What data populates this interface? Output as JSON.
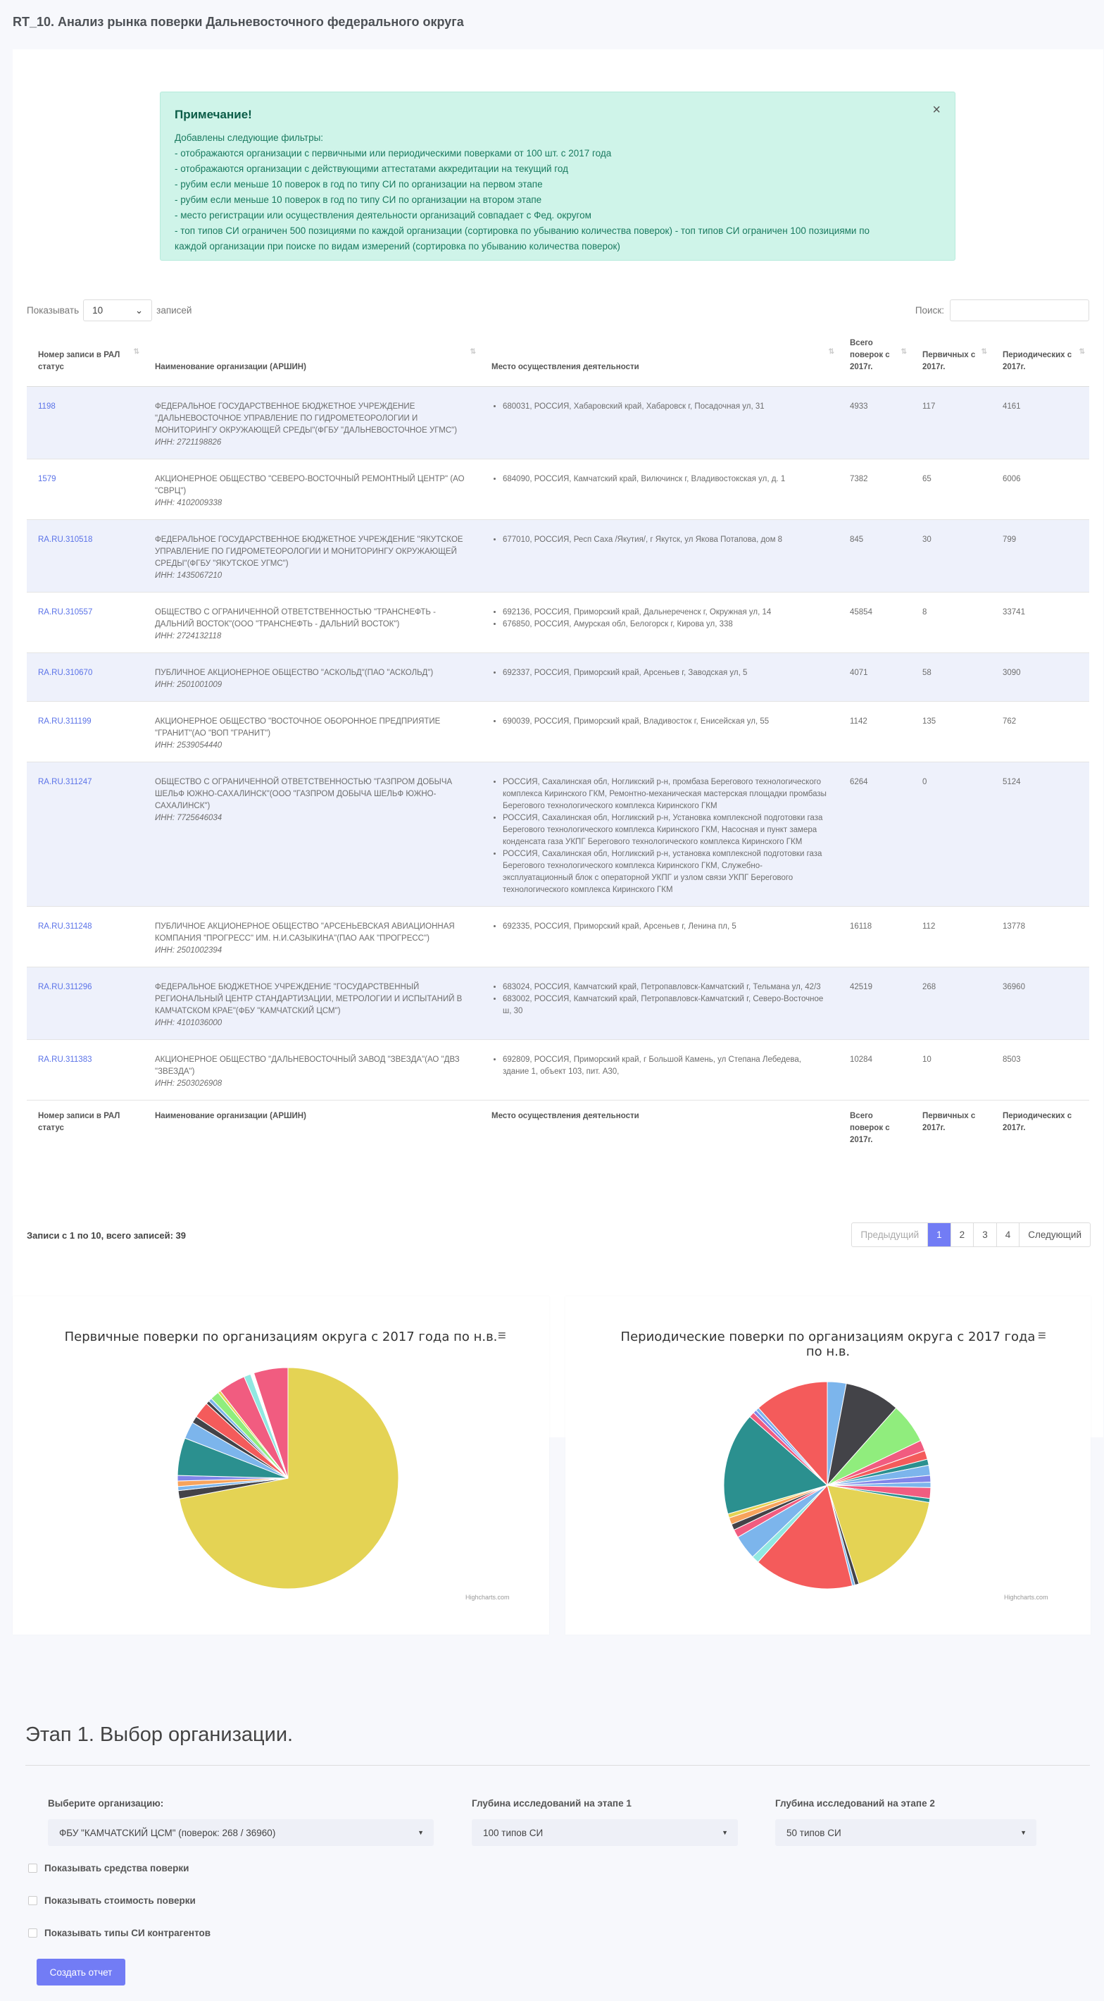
{
  "page": {
    "title": "RT_10. Анализ рынка поверки Дальневосточного федерального округа"
  },
  "note": {
    "title": "Примечание!",
    "lines": [
      "Добавлены следующие фильтры:",
      "- отображаются организации с первичными или периодическими поверками от 100 шт. с 2017 года",
      "- отображаются организации с действующими аттестатами аккредитации на текущий год",
      "- рубим если меньше 10 поверок в год по типу СИ по организации на первом этапе",
      "- рубим если меньше 10 поверок в год по типу СИ по организации на втором этапе",
      "- место регистрации или осуществления деятельности организаций совпадает с Фед. округом",
      "- топ типов СИ ограничен 500 позициями по каждой организации (сортировка по убыванию количества поверок) - топ типов СИ ограничен 100 позициями по",
      "каждой организации при поиске по видам измерений (сортировка по убыванию количества поверок)"
    ],
    "close": "×"
  },
  "table_controls": {
    "show_label": "Показывать",
    "length_value": "10",
    "records_label": "записей",
    "search_label": "Поиск:"
  },
  "columns": [
    "Номер записи в РАЛ статус",
    "Наименование организации (АРШИН)",
    "Место осуществления деятельности",
    "Всего поверок с 2017г.",
    "Первичных с 2017г.",
    "Периодических с 2017г."
  ],
  "rows": [
    {
      "rec": "1198",
      "name": "ФЕДЕРАЛЬНОЕ ГОСУДАРСТВЕННОЕ БЮДЖЕТНОЕ УЧРЕЖДЕНИЕ \"ДАЛЬНЕВОСТОЧНОЕ УПРАВЛЕНИЕ ПО ГИДРОМЕТЕОРОЛОГИИ И МОНИТОРИНГУ ОКРУЖАЮЩЕЙ СРЕДЫ\"(ФГБУ \"ДАЛЬНЕВОСТОЧНОЕ УГМС\")",
      "inn": "ИНН: 2721198826",
      "places": [
        "680031, РОССИЯ, Хабаровский край, Хабаровск г, Посадочная ул, 31"
      ],
      "total": "4933",
      "primary": "117",
      "periodic": "4161"
    },
    {
      "rec": "1579",
      "name": "АКЦИОНЕРНОЕ ОБЩЕСТВО \"СЕВЕРО-ВОСТОЧНЫЙ РЕМОНТНЫЙ ЦЕНТР\" (АО \"СВРЦ\")",
      "inn": "ИНН: 4102009338",
      "places": [
        "684090, РОССИЯ, Камчатский край, Вилючинск г, Владивостокская ул, д. 1"
      ],
      "total": "7382",
      "primary": "65",
      "periodic": "6006"
    },
    {
      "rec": "RA.RU.310518",
      "name": "ФЕДЕРАЛЬНОЕ ГОСУДАРСТВЕННОЕ БЮДЖЕТНОЕ УЧРЕЖДЕНИЕ \"ЯКУТСКОЕ УПРАВЛЕНИЕ ПО ГИДРОМЕТЕОРОЛОГИИ И МОНИТОРИНГУ ОКРУЖАЮЩЕЙ СРЕДЫ\"(ФГБУ \"ЯКУТСКОЕ УГМС\")",
      "inn": "ИНН: 1435067210",
      "places": [
        "677010, РОССИЯ, Респ Саха /Якутия/, г Якутск, ул Якова Потапова, дом 8"
      ],
      "total": "845",
      "primary": "30",
      "periodic": "799"
    },
    {
      "rec": "RA.RU.310557",
      "name": "ОБЩЕСТВО С ОГРАНИЧЕННОЙ ОТВЕТСТВЕННОСТЬЮ \"ТРАНСНЕФТЬ - ДАЛЬНИЙ ВОСТОК\"(ООО \"ТРАНСНЕФТЬ - ДАЛЬНИЙ ВОСТОК\")",
      "inn": "ИНН: 2724132118",
      "places": [
        "692136, РОССИЯ, Приморский край, Дальнереченск г, Окружная ул, 14",
        "676850, РОССИЯ, Амурская обл, Белогорск г, Кирова ул, 338"
      ],
      "total": "45854",
      "primary": "8",
      "periodic": "33741"
    },
    {
      "rec": "RA.RU.310670",
      "name": "ПУБЛИЧНОЕ АКЦИОНЕРНОЕ ОБЩЕСТВО \"АСКОЛЬД\"(ПАО \"АСКОЛЬД\")",
      "inn": "ИНН: 2501001009",
      "places": [
        "692337, РОССИЯ, Приморский край, Арсеньев г, Заводская ул, 5"
      ],
      "total": "4071",
      "primary": "58",
      "periodic": "3090"
    },
    {
      "rec": "RA.RU.311199",
      "name": "АКЦИОНЕРНОЕ ОБЩЕСТВО \"ВОСТОЧНОЕ ОБОРОННОЕ ПРЕДПРИЯТИЕ \"ГРАНИТ\"(АО \"ВОП \"ГРАНИТ\")",
      "inn": "ИНН: 2539054440",
      "places": [
        "690039, РОССИЯ, Приморский край, Владивосток г, Енисейская ул, 55"
      ],
      "total": "1142",
      "primary": "135",
      "periodic": "762"
    },
    {
      "rec": "RA.RU.311247",
      "name": "ОБЩЕСТВО С ОГРАНИЧЕННОЙ ОТВЕТСТВЕННОСТЬЮ \"ГАЗПРОМ ДОБЫЧА ШЕЛЬФ ЮЖНО-САХАЛИНСК\"(ООО \"ГАЗПРОМ ДОБЫЧА ШЕЛЬФ ЮЖНО-САХАЛИНСК\")",
      "inn": "ИНН: 7725646034",
      "places": [
        "РОССИЯ, Сахалинская обл, Ногликский р-н, промбаза Берегового технологического комплекса Киринского ГКМ, Ремонтно-механическая мастерская площадки промбазы Берегового технологического комплекса Киринского ГКМ",
        "РОССИЯ, Сахалинская обл, Ногликский р-н, Установка комплексной подготовки газа Берегового технологического комплекса Киринского ГКМ, Насосная и пункт замера конденсата газа УКПГ Берегового технологического комплекса Киринского ГКМ",
        "РОССИЯ, Сахалинская обл, Ногликский р-н, установка комплексной подготовки газа Берегового технологического комплекса Киринского ГКМ, Служебно-эксплуатационный блок с операторной УКПГ и узлом связи УКПГ Берегового технологического комплекса Киринского ГКМ"
      ],
      "total": "6264",
      "primary": "0",
      "periodic": "5124"
    },
    {
      "rec": "RA.RU.311248",
      "name": "ПУБЛИЧНОЕ АКЦИОНЕРНОЕ ОБЩЕСТВО \"АРСЕНЬЕВСКАЯ АВИАЦИОННАЯ КОМПАНИЯ \"ПРОГРЕСС\" ИМ. Н.И.САЗЫКИНА\"(ПАО ААК \"ПРОГРЕСС\")",
      "inn": "ИНН: 2501002394",
      "places": [
        "692335, РОССИЯ, Приморский край, Арсеньев г, Ленина пл, 5"
      ],
      "total": "16118",
      "primary": "112",
      "periodic": "13778"
    },
    {
      "rec": "RA.RU.311296",
      "name": "ФЕДЕРАЛЬНОЕ БЮДЖЕТНОЕ УЧРЕЖДЕНИЕ \"ГОСУДАРСТВЕННЫЙ РЕГИОНАЛЬНЫЙ ЦЕНТР СТАНДАРТИЗАЦИИ, МЕТРОЛОГИИ И ИСПЫТАНИЙ В КАМЧАТСКОМ КРАЕ\"(ФБУ \"КАМЧАТСКИЙ ЦСМ\")",
      "inn": "ИНН: 4101036000",
      "places": [
        "683024, РОССИЯ, Камчатский край, Петропавловск-Камчатский г, Тельмана ул, 42/3",
        "683002, РОССИЯ, Камчатский край, Петропавловск-Камчатский г, Северо-Восточное ш, 30"
      ],
      "total": "42519",
      "primary": "268",
      "periodic": "36960"
    },
    {
      "rec": "RA.RU.311383",
      "name": "АКЦИОНЕРНОЕ ОБЩЕСТВО \"ДАЛЬНЕВОСТОЧНЫЙ ЗАВОД \"ЗВЕЗДА\"(АО \"ДВЗ \"ЗВЕЗДА\")",
      "inn": "ИНН: 2503026908",
      "places": [
        "692809, РОССИЯ, Приморский край, г Большой Камень, ул Степана Лебедева, здание 1, объект 103, пит. А30,"
      ],
      "total": "10284",
      "primary": "10",
      "periodic": "8503"
    }
  ],
  "table_info": "Записи с 1 по 10, всего записей: 39",
  "pagination": {
    "prev": "Предыдущий",
    "pages": [
      "1",
      "2",
      "3",
      "4"
    ],
    "next": "Следующий"
  },
  "chart_data": [
    {
      "type": "pie",
      "title": "Первичные поверки по организациям округа с 2017 года по н.в.",
      "credits": "Highcharts.com",
      "slices": [
        {
          "value": 72.0,
          "color": "#e4d354"
        },
        {
          "value": 1.2,
          "color": "#434348"
        },
        {
          "value": 0.6,
          "color": "#7cb5ec"
        },
        {
          "value": 0.8,
          "color": "#f7a35c"
        },
        {
          "value": 0.8,
          "color": "#8085e9"
        },
        {
          "value": 5.5,
          "color": "#2b908f"
        },
        {
          "value": 2.5,
          "color": "#7cb5ec"
        },
        {
          "value": 1.0,
          "color": "#434348"
        },
        {
          "value": 2.4,
          "color": "#f45b5b"
        },
        {
          "value": 0.5,
          "color": "#434348"
        },
        {
          "value": 0.5,
          "color": "#7cb5ec"
        },
        {
          "value": 1.3,
          "color": "#90ed7d"
        },
        {
          "value": 0.4,
          "color": "#e4d354"
        },
        {
          "value": 4.0,
          "color": "#f15c80"
        },
        {
          "value": 1.0,
          "color": "#91e8e1"
        },
        {
          "value": 0.5,
          "color": "#ffffff"
        },
        {
          "value": 5.0,
          "color": "#f15c80"
        }
      ]
    },
    {
      "type": "pie",
      "title": "Периодические поверки по организациям округа с 2017 года по н.в.",
      "credits": "Highcharts.com",
      "slices": [
        {
          "value": 2.8,
          "color": "#7cb5ec"
        },
        {
          "value": 8.2,
          "color": "#434348"
        },
        {
          "value": 6.0,
          "color": "#90ed7d"
        },
        {
          "value": 1.6,
          "color": "#f15c80"
        },
        {
          "value": 1.3,
          "color": "#f45b5b"
        },
        {
          "value": 0.9,
          "color": "#2b908f"
        },
        {
          "value": 1.5,
          "color": "#7cb5ec"
        },
        {
          "value": 1.0,
          "color": "#8085e9"
        },
        {
          "value": 0.8,
          "color": "#7cb5ec"
        },
        {
          "value": 1.6,
          "color": "#f15c80"
        },
        {
          "value": 0.6,
          "color": "#2b908f"
        },
        {
          "value": 16.5,
          "color": "#e4d354"
        },
        {
          "value": 0.6,
          "color": "#434348"
        },
        {
          "value": 0.4,
          "color": "#7cb5ec"
        },
        {
          "value": 14.8,
          "color": "#f45b5b"
        },
        {
          "value": 1.1,
          "color": "#91e8e1"
        },
        {
          "value": 3.6,
          "color": "#7cb5ec"
        },
        {
          "value": 1.2,
          "color": "#f15c80"
        },
        {
          "value": 0.9,
          "color": "#434348"
        },
        {
          "value": 1.0,
          "color": "#f7a35c"
        },
        {
          "value": 0.6,
          "color": "#e4d354"
        },
        {
          "value": 15.2,
          "color": "#2b908f"
        },
        {
          "value": 0.8,
          "color": "#f15c80"
        },
        {
          "value": 0.5,
          "color": "#8085e9"
        },
        {
          "value": 0.5,
          "color": "#7cb5ec"
        },
        {
          "value": 11.0,
          "color": "#f45b5b"
        }
      ]
    }
  ],
  "stage": {
    "title": "Этап 1. Выбор организации.",
    "org_label": "Выберите организацию:",
    "org_value": "ФБУ \"КАМЧАТСКИЙ ЦСМ\" (поверок: 268 / 36960)",
    "depth1_label": "Глубина исследований на этапе 1",
    "depth1_value": "100 типов СИ",
    "depth2_label": "Глубина исследований на этапе 2",
    "depth2_value": "50 типов СИ",
    "chk1": "Показывать средства поверки",
    "chk2": "Показывать стоимость поверки",
    "chk3": "Показывать типы СИ контрагентов",
    "button": "Создать отчет"
  }
}
